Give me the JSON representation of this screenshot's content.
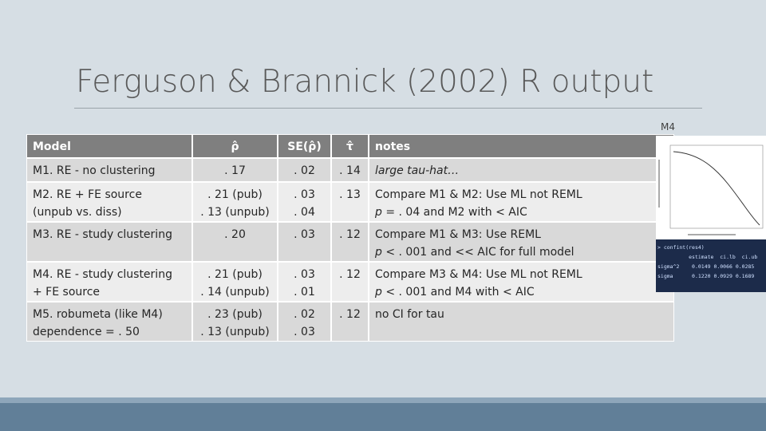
{
  "slide": {
    "title": "Ferguson & Brannick (2002) R output"
  },
  "table": {
    "header": [
      "Model",
      "ρ̂",
      "SE(ρ̂)",
      "τ̂",
      "notes"
    ],
    "rows": [
      [
        [
          "M1. RE - no clustering"
        ],
        [
          ". 17"
        ],
        [
          ". 02"
        ],
        [
          ". 14"
        ],
        [
          "large tau-hat…"
        ]
      ],
      [
        [
          "M2. RE + FE source",
          "(unpub vs. diss)"
        ],
        [
          ". 21 (pub)",
          ". 13 (unpub)"
        ],
        [
          ". 03",
          ". 04"
        ],
        [
          ". 13"
        ],
        [
          "Compare M1 & M2: Use ML not REML",
          [
            "p",
            " = . 04 and M2 with < AIC"
          ]
        ]
      ],
      [
        [
          "M3. RE - study clustering"
        ],
        [
          ". 20"
        ],
        [
          ". 03"
        ],
        [
          ". 12"
        ],
        [
          "Compare M1 & M3: Use REML",
          [
            "p",
            " < . 001 and << AIC for full model"
          ]
        ]
      ],
      [
        [
          "M4. RE - study clustering",
          "+ FE source"
        ],
        [
          ". 21 (pub)",
          ". 14 (unpub)"
        ],
        [
          ". 03",
          ". 01"
        ],
        [
          ". 12"
        ],
        [
          "Compare M3 & M4: Use ML not REML",
          [
            "p",
            " < . 001 and M4 with < AIC"
          ]
        ]
      ],
      [
        [
          "M5. robumeta (like M4)",
          "dependence = . 50"
        ],
        [
          ". 23 (pub)",
          ". 13 (unpub)"
        ],
        [
          ". 02",
          ". 03"
        ],
        [
          ". 12"
        ],
        [
          "no CI for tau"
        ]
      ]
    ]
  },
  "inset": {
    "label": "M4",
    "console": [
      "> confint(res4)",
      "          estimate  ci.lb  ci.ub",
      "sigma^2    0.0149 0.0066 0.0285",
      "sigma      0.1220 0.0929 0.1689"
    ]
  }
}
